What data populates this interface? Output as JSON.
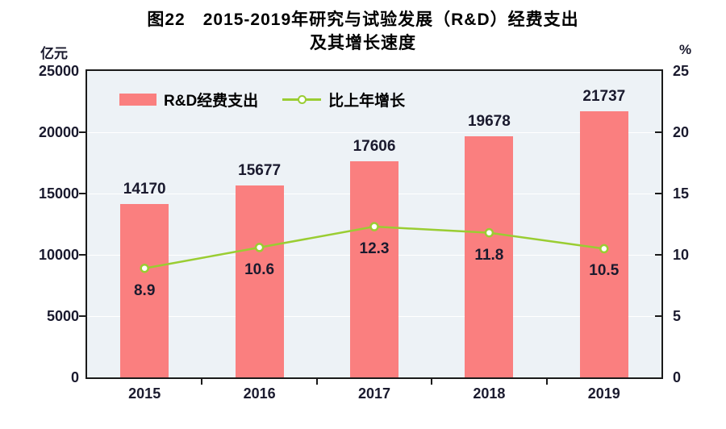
{
  "title": {
    "line1": "图22　2015-2019年研究与试验发展（R&D）经费支出",
    "line2": "及其增长速度"
  },
  "colors": {
    "bar": "#FA7F7F",
    "line": "#9ACD32",
    "marker_fill": "#FFFFFF",
    "plot_bg": "#EDF2F6",
    "grid": "#FFFFFF",
    "axis": "#1A1A1A",
    "text": "#1A1A2E"
  },
  "chart_data": {
    "type": "bar",
    "combo": "bar+line",
    "title": "图22 2015-2019年研究与试验发展（R&D）经费支出及其增长速度",
    "categories": [
      "2015",
      "2016",
      "2017",
      "2018",
      "2019"
    ],
    "series": [
      {
        "name": "R&D经费支出",
        "type": "bar",
        "axis": "left",
        "values": [
          14170,
          15677,
          17606,
          19678,
          21737
        ],
        "data_labels": [
          "14170",
          "15677",
          "17606",
          "19678",
          "21737"
        ],
        "color": "#FA7F7F"
      },
      {
        "name": "比上年增长",
        "type": "line",
        "axis": "right",
        "values": [
          8.9,
          10.6,
          12.3,
          11.8,
          10.5
        ],
        "data_labels": [
          "8.9",
          "10.6",
          "12.3",
          "11.8",
          "10.5"
        ],
        "color": "#9ACD32"
      }
    ],
    "left_axis": {
      "unit": "亿元",
      "min": 0,
      "max": 25000,
      "step": 5000,
      "tick_labels": [
        "0",
        "5000",
        "10000",
        "15000",
        "20000",
        "25000"
      ]
    },
    "right_axis": {
      "unit": "%",
      "min": 0,
      "max": 25,
      "step": 5,
      "tick_labels": [
        "0",
        "5",
        "10",
        "15",
        "20",
        "25"
      ]
    },
    "grid": true,
    "legend_position": "top-left-inside"
  }
}
